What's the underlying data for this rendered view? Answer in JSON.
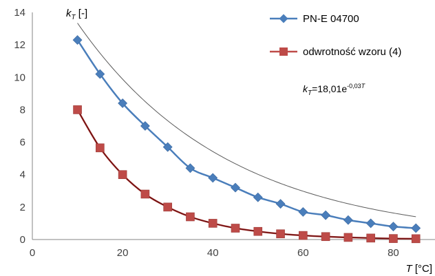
{
  "chart_data": {
    "type": "scatter",
    "title": "",
    "xlabel": {
      "var": "T",
      "unit": " [°C]"
    },
    "ylabel": {
      "var": "k",
      "sub": "T",
      "unit": " [-]"
    },
    "xlim": [
      0,
      90
    ],
    "ylim": [
      0,
      14
    ],
    "x_ticks": [
      0,
      20,
      40,
      60,
      80
    ],
    "y_ticks": [
      0,
      2,
      4,
      6,
      8,
      10,
      12,
      14
    ],
    "grid": false,
    "legend_position": "top-right",
    "series": [
      {
        "name": "PN-E 04700",
        "marker": "diamond",
        "color": "#4A7EBB",
        "x": [
          10,
          15,
          20,
          25,
          30,
          35,
          40,
          45,
          50,
          55,
          60,
          65,
          70,
          75,
          80,
          85
        ],
        "y": [
          12.3,
          10.2,
          8.4,
          7.0,
          5.7,
          4.4,
          3.8,
          3.2,
          2.6,
          2.2,
          1.7,
          1.5,
          1.2,
          1.0,
          0.8,
          0.7
        ]
      },
      {
        "name": "odwrotność wzoru (4)",
        "marker": "square",
        "color": "#BE4B48",
        "x": [
          10,
          15,
          20,
          25,
          30,
          35,
          40,
          45,
          50,
          55,
          60,
          65,
          70,
          75,
          80,
          85
        ],
        "y": [
          8.0,
          5.65,
          4.0,
          2.8,
          2.0,
          1.4,
          1.0,
          0.7,
          0.5,
          0.35,
          0.25,
          0.18,
          0.13,
          0.09,
          0.06,
          0.05
        ]
      }
    ],
    "trendline": {
      "coef": 18.01,
      "rate": -0.03,
      "x_range": [
        10,
        85
      ],
      "color": "#5a5a5a",
      "label": {
        "var": "k",
        "sub": "T",
        "eq": "=18,01e",
        "exp": "-0,03",
        "exp_var": "T"
      }
    },
    "fit_curve_color": "#6B0F0F"
  }
}
